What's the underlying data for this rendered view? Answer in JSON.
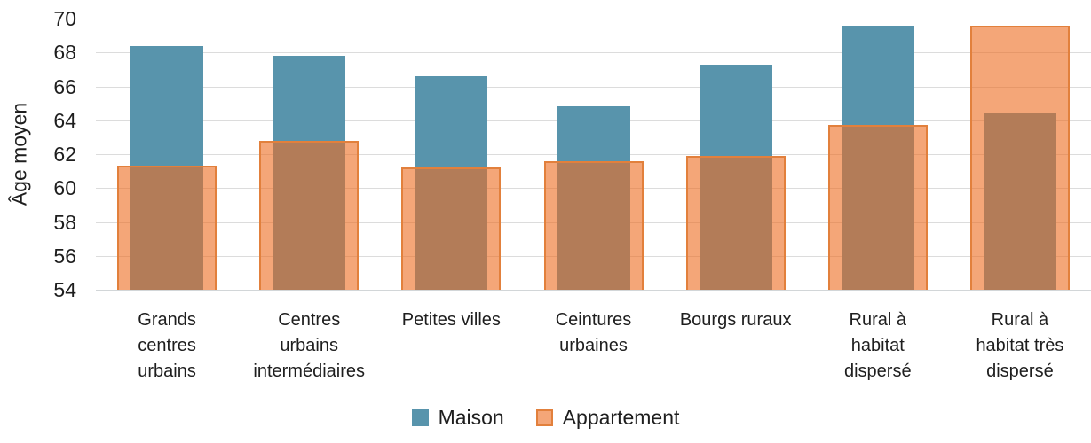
{
  "chart_data": {
    "type": "bar",
    "title": "",
    "xlabel": "",
    "ylabel": "Âge moyen",
    "ylim": [
      54,
      70
    ],
    "yticks": [
      54,
      56,
      58,
      60,
      62,
      64,
      66,
      68,
      70
    ],
    "grid": true,
    "grid_axis": "y",
    "bar_style": "overlapping",
    "legend_position": "bottom",
    "categories": [
      "Grands centres urbains",
      "Centres urbains intermédiaires",
      "Petites villes",
      "Ceintures urbaines",
      "Bourgs ruraux",
      "Rural à habitat dispersé",
      "Rural à habitat très dispersé"
    ],
    "category_lines": [
      [
        "Grands",
        "centres",
        "urbains"
      ],
      [
        "Centres",
        "urbains",
        "intermédiaires"
      ],
      [
        "Petites villes"
      ],
      [
        "Ceintures",
        "urbaines"
      ],
      [
        "Bourgs ruraux"
      ],
      [
        "Rural à",
        "habitat",
        "dispersé"
      ],
      [
        "Rural à",
        "habitat très",
        "dispersé"
      ]
    ],
    "series": [
      {
        "name": "Maison",
        "values": [
          68.4,
          67.8,
          66.6,
          64.8,
          67.3,
          69.6,
          64.4
        ],
        "color": "#5894ac",
        "fill_opacity": 1,
        "border_color": null
      },
      {
        "name": "Appartement",
        "values": [
          61.3,
          62.8,
          61.2,
          61.6,
          61.9,
          63.7,
          69.6
        ],
        "color": "#ed6d22",
        "fill_opacity": 0.61,
        "border_color": "#e2803c"
      }
    ]
  },
  "colors": {
    "maison": "#5894ac",
    "appartement_fill_over_white": "#f4a678",
    "overlap": "#b3855e",
    "appartement_border": "#e2803c",
    "gridline": "#dcdcdc",
    "text": "#1e1e1e"
  }
}
